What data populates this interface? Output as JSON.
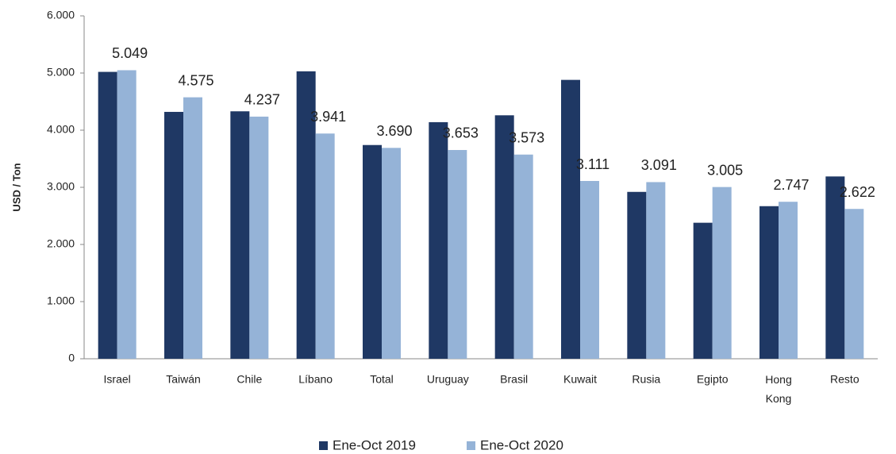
{
  "chart_data": {
    "type": "bar",
    "y_label": "USD / Ton",
    "categories": [
      "Israel",
      "Taiwán",
      "Chile",
      "Líbano",
      "Total",
      "Uruguay",
      "Brasil",
      "Kuwait",
      "Rusia",
      "Egipto",
      "Hong Kong",
      "Resto"
    ],
    "series": [
      {
        "name": "Ene-Oct 2019",
        "color": "#1f3864",
        "values": [
          5020,
          4320,
          4330,
          5030,
          3740,
          4140,
          4260,
          4880,
          2920,
          2380,
          2670,
          3190
        ]
      },
      {
        "name": "Ene-Oct 2020",
        "color": "#95b3d7",
        "values": [
          5049,
          4575,
          4237,
          3941,
          3690,
          3653,
          3573,
          3111,
          3091,
          3005,
          2747,
          2622
        ],
        "value_labels": [
          "5.049",
          "4.575",
          "4.237",
          "3.941",
          "3.690",
          "3.653",
          "3.573",
          "3.111",
          "3.091",
          "3.005",
          "2.747",
          "2.622"
        ]
      }
    ],
    "ylim": [
      0,
      6000
    ],
    "yticks": [
      0,
      {
        "value": 1000,
        "label": "1.000"
      },
      {
        "value": 2000,
        "label": "2.000"
      },
      {
        "value": 3000,
        "label": "3.000"
      },
      {
        "value": 4000,
        "label": "4.000"
      },
      {
        "value": 5000,
        "label": "5.000"
      },
      {
        "value": 6000,
        "label": "6.000"
      }
    ],
    "grid": false,
    "legend": "bottom"
  }
}
